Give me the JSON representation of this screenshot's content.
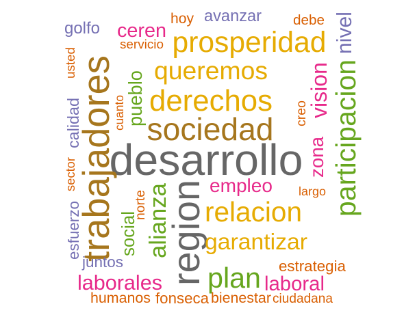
{
  "colors": {
    "gray": "#666666",
    "brown": "#A6761D",
    "gold": "#E6AB02",
    "green": "#66A61E",
    "magenta": "#E7298A",
    "orange": "#D95F02",
    "slate": "#7570B3",
    "background": "#FFFFFF"
  },
  "words": [
    {
      "text": "desarrollo",
      "color": "gray"
    },
    {
      "text": "region",
      "color": "gray"
    },
    {
      "text": "trabajadores",
      "color": "brown"
    },
    {
      "text": "sociedad",
      "color": "brown"
    },
    {
      "text": "derechos",
      "color": "gold"
    },
    {
      "text": "queremos",
      "color": "gold"
    },
    {
      "text": "prosperidad",
      "color": "gold"
    },
    {
      "text": "relacion",
      "color": "gold"
    },
    {
      "text": "garantizar",
      "color": "gold"
    },
    {
      "text": "participacion",
      "color": "green"
    },
    {
      "text": "plan",
      "color": "green"
    },
    {
      "text": "alianza",
      "color": "green"
    },
    {
      "text": "social",
      "color": "green"
    },
    {
      "text": "pueblo",
      "color": "green"
    },
    {
      "text": "vision",
      "color": "magenta"
    },
    {
      "text": "zona",
      "color": "magenta"
    },
    {
      "text": "empleo",
      "color": "magenta"
    },
    {
      "text": "ceren",
      "color": "magenta"
    },
    {
      "text": "laborales",
      "color": "magenta"
    },
    {
      "text": "laboral",
      "color": "magenta"
    },
    {
      "text": "nivel",
      "color": "slate"
    },
    {
      "text": "avanzar",
      "color": "slate"
    },
    {
      "text": "golfo",
      "color": "slate"
    },
    {
      "text": "calidad",
      "color": "slate"
    },
    {
      "text": "esfuerzo",
      "color": "slate"
    },
    {
      "text": "juntos",
      "color": "slate"
    },
    {
      "text": "hoy",
      "color": "orange"
    },
    {
      "text": "debe",
      "color": "orange"
    },
    {
      "text": "servicio",
      "color": "orange"
    },
    {
      "text": "usted",
      "color": "orange"
    },
    {
      "text": "cuanto",
      "color": "orange"
    },
    {
      "text": "creo",
      "color": "orange"
    },
    {
      "text": "sector",
      "color": "orange"
    },
    {
      "text": "norte",
      "color": "orange"
    },
    {
      "text": "largo",
      "color": "orange"
    },
    {
      "text": "estrategia",
      "color": "orange"
    },
    {
      "text": "humanos",
      "color": "orange"
    },
    {
      "text": "fonseca",
      "color": "orange"
    },
    {
      "text": "bienestar",
      "color": "orange"
    },
    {
      "text": "ciudadana",
      "color": "orange"
    }
  ]
}
